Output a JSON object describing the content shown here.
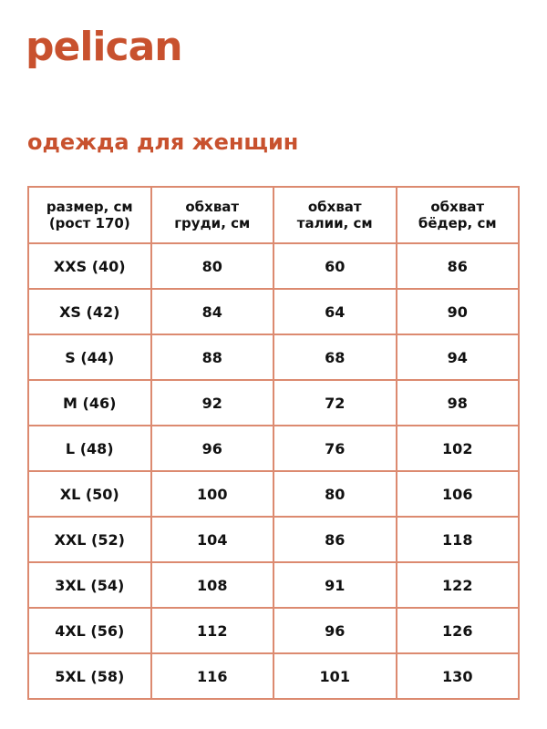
{
  "logo": "pelican",
  "title": "одежда для женщин",
  "colors": {
    "accent": "#c8512e",
    "border": "#dc8a70"
  },
  "headers": [
    [
      "размер, см",
      "(рост 170)"
    ],
    [
      "обхват",
      "груди, см"
    ],
    [
      "обхват",
      "талии, см"
    ],
    [
      "обхват",
      "бёдер, см"
    ]
  ],
  "rows": [
    [
      "XXS (40)",
      "80",
      "60",
      "86"
    ],
    [
      "XS (42)",
      "84",
      "64",
      "90"
    ],
    [
      "S (44)",
      "88",
      "68",
      "94"
    ],
    [
      "M (46)",
      "92",
      "72",
      "98"
    ],
    [
      "L (48)",
      "96",
      "76",
      "102"
    ],
    [
      "XL (50)",
      "100",
      "80",
      "106"
    ],
    [
      "XXL (52)",
      "104",
      "86",
      "118"
    ],
    [
      "3XL (54)",
      "108",
      "91",
      "122"
    ],
    [
      "4XL (56)",
      "112",
      "96",
      "126"
    ],
    [
      "5XL (58)",
      "116",
      "101",
      "130"
    ]
  ]
}
